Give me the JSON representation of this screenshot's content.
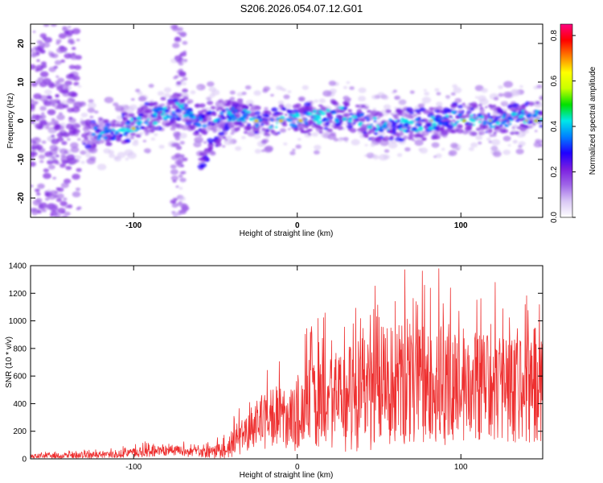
{
  "title": "S206.2026.054.07.12.G01",
  "chart_data": [
    {
      "type": "heatmap",
      "name": "spectrogram",
      "xlabel": "Height of straight line (km)",
      "ylabel": "Frequency (Hz)",
      "xlim": [
        -163,
        150
      ],
      "ylim": [
        -25,
        25
      ],
      "xticks": [
        "-100",
        "0",
        "100"
      ],
      "yticks": [
        "20",
        "10",
        "0",
        "-10",
        "-20"
      ],
      "colorbar": {
        "label": "Normalized spectral amplitude",
        "range": [
          0,
          0.85
        ],
        "ticks": [
          "0.0",
          "0.2",
          "0.4",
          "0.6",
          "0.8"
        ],
        "colors": [
          "#ffffff",
          "#d9c8f5",
          "#a066e8",
          "#7a1fe0",
          "#2000ff",
          "#0080ff",
          "#00e8e8",
          "#00e000",
          "#c8ff00",
          "#ffff00",
          "#ff8000",
          "#ff0000",
          "#ff0080"
        ]
      },
      "ridge": {
        "x": [
          -130,
          -110,
          -95,
          -80,
          -70,
          -60,
          -40,
          -25,
          0,
          15,
          30,
          45,
          60,
          80,
          100,
          120,
          140,
          150
        ],
        "freq": [
          -3,
          -3,
          0,
          2,
          3,
          0,
          2,
          0,
          0,
          1,
          2,
          -1,
          -1,
          -1,
          1,
          0,
          1,
          1
        ]
      }
    },
    {
      "type": "line",
      "name": "snr",
      "xlabel": "Height of straight line (km)",
      "ylabel": "SNR (10 * v/v)",
      "xlim": [
        -163,
        150
      ],
      "ylim": [
        0,
        1400
      ],
      "xticks": [
        "-100",
        "0",
        "100"
      ],
      "yticks": [
        "0",
        "200",
        "400",
        "600",
        "800",
        "1000",
        "1200",
        "1400"
      ],
      "color": "#ee3030",
      "envelope": {
        "x": [
          -163,
          -130,
          -100,
          -80,
          -60,
          -45,
          -35,
          -25,
          -15,
          0,
          20,
          40,
          55,
          70,
          90,
          110,
          130,
          150
        ],
        "mean": [
          20,
          25,
          40,
          70,
          40,
          60,
          150,
          250,
          300,
          330,
          400,
          470,
          540,
          560,
          520,
          520,
          500,
          500
        ],
        "spread": [
          15,
          20,
          35,
          45,
          30,
          60,
          120,
          180,
          230,
          280,
          350,
          420,
          460,
          460,
          420,
          400,
          380,
          380
        ]
      }
    }
  ]
}
